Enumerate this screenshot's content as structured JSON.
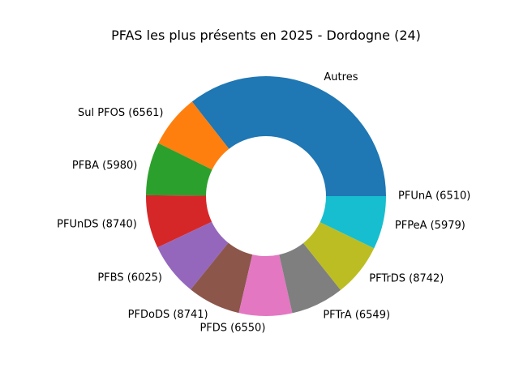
{
  "chart_data": {
    "type": "pie",
    "donut": true,
    "title": "PFAS les plus présents en 2025 - Dordogne (24)",
    "start_angle_deg": 0,
    "direction": "counterclockwise",
    "slices": [
      {
        "label": "Autres",
        "value": 30.8,
        "color": "#1f77b4"
      },
      {
        "label": "Sul PFOS (6561)",
        "value": 6.2,
        "color": "#ff7f0e"
      },
      {
        "label": "PFBA (5980)",
        "value": 6.2,
        "color": "#2ca02c"
      },
      {
        "label": "PFUnDS (8740)",
        "value": 6.2,
        "color": "#d62728"
      },
      {
        "label": "PFBS (6025)",
        "value": 6.2,
        "color": "#9467bd"
      },
      {
        "label": "PFDoDS (8741)",
        "value": 6.2,
        "color": "#8c564b"
      },
      {
        "label": "PFDS (6550)",
        "value": 6.2,
        "color": "#e377c2"
      },
      {
        "label": "PFTrA (6549)",
        "value": 6.2,
        "color": "#7f7f7f"
      },
      {
        "label": "PFTrDS (8742)",
        "value": 6.2,
        "color": "#bcbd22"
      },
      {
        "label": "PFPeA (5979)",
        "value": 6.2,
        "color": "#17becf"
      },
      {
        "label": "PFUnA (6510)",
        "value": 0.0,
        "color": "#1f77b4"
      }
    ]
  }
}
